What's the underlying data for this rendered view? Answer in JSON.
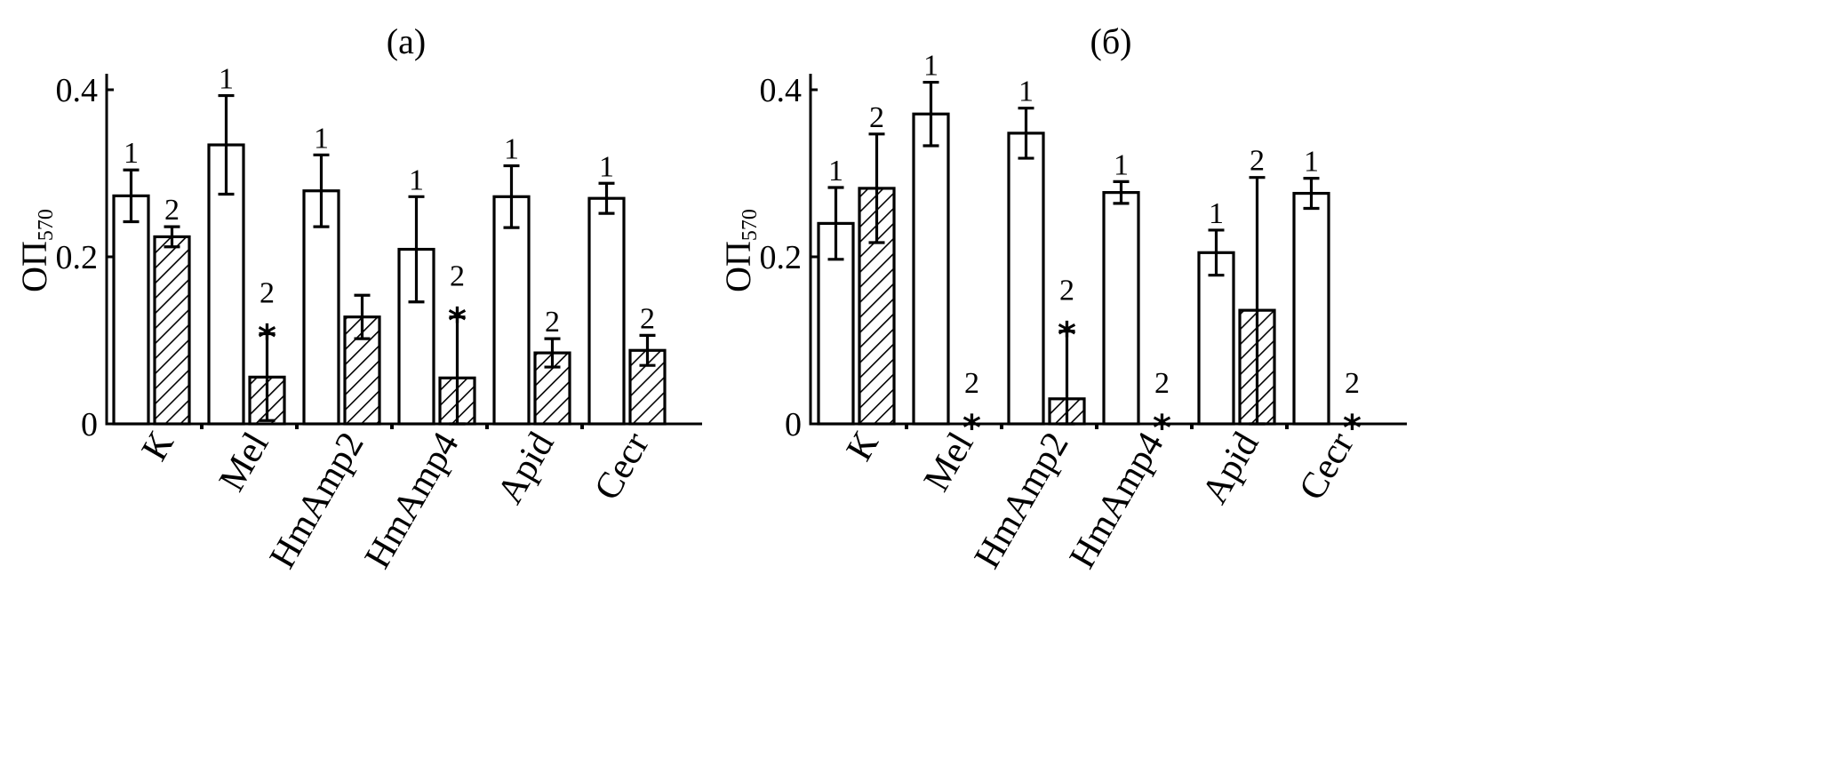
{
  "chart_data": [
    {
      "type": "bar",
      "title": "(а)",
      "ylabel": "ОП",
      "ylabel_subscript": "570",
      "ylim": [
        0,
        0.42
      ],
      "yticks": [
        {
          "value": 0,
          "label": "0"
        },
        {
          "value": 0.2,
          "label": "0.2"
        },
        {
          "value": 0.4,
          "label": "0.4"
        }
      ],
      "categories": [
        "К",
        "Mel",
        "HmAmp2",
        "HmAmp4",
        "Apid",
        "Cecr"
      ],
      "series": [
        {
          "marker": "1",
          "fill": "open",
          "values": [
            0.273,
            0.334,
            0.279,
            0.209,
            0.272,
            0.27
          ],
          "errors": [
            0.031,
            0.059,
            0.043,
            0.063,
            0.037,
            0.018
          ],
          "markers": [
            "1",
            "1",
            "1",
            "1",
            "1",
            "1"
          ],
          "significant": [
            false,
            false,
            false,
            false,
            false,
            false
          ]
        },
        {
          "marker": "2",
          "fill": "hatched",
          "values": [
            0.224,
            0.056,
            0.128,
            0.055,
            0.085,
            0.088
          ],
          "errors": [
            0.012,
            0.052,
            0.026,
            0.073,
            0.017,
            0.018
          ],
          "markers": [
            "2",
            "2",
            "",
            "2",
            "2",
            "2"
          ],
          "significant": [
            false,
            true,
            false,
            true,
            false,
            false
          ]
        }
      ]
    },
    {
      "type": "bar",
      "title": "(б)",
      "ylabel": "ОП",
      "ylabel_subscript": "570",
      "ylim": [
        0,
        0.42
      ],
      "yticks": [
        {
          "value": 0,
          "label": "0"
        },
        {
          "value": 0.2,
          "label": "0.2"
        },
        {
          "value": 0.4,
          "label": "0.4"
        }
      ],
      "categories": [
        "К",
        "Mel",
        "HmAmp2",
        "HmAmp4",
        "Apid",
        "Cecr"
      ],
      "series": [
        {
          "marker": "1",
          "fill": "open",
          "values": [
            0.24,
            0.371,
            0.348,
            0.277,
            0.205,
            0.276
          ],
          "errors": [
            0.043,
            0.038,
            0.03,
            0.013,
            0.027,
            0.018
          ],
          "markers": [
            "1",
            "1",
            "1",
            "1",
            "1",
            "1"
          ],
          "significant": [
            false,
            false,
            false,
            false,
            false,
            false
          ]
        },
        {
          "marker": "2",
          "fill": "hatched",
          "values": [
            0.282,
            0.0,
            0.03,
            0.0,
            0.136,
            0.0
          ],
          "errors": [
            0.065,
            0.0,
            0.081,
            0.0,
            0.159,
            0.0
          ],
          "markers": [
            "2",
            "2",
            "2",
            "2",
            "2",
            "2"
          ],
          "significant": [
            false,
            true,
            true,
            true,
            false,
            true
          ]
        }
      ]
    }
  ]
}
